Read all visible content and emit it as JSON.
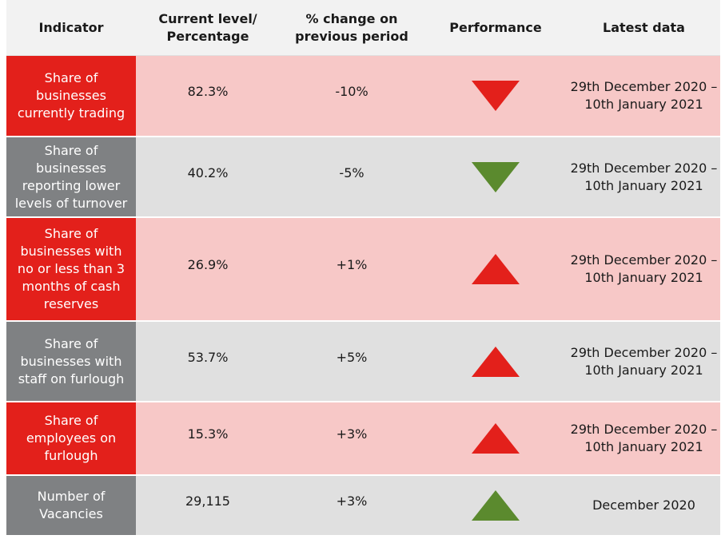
{
  "headers": {
    "indicator": "Indicator",
    "current_level": "Current level/\nPercentage",
    "pct_change": "% change on\nprevious period",
    "performance": "Performance",
    "latest_data": "Latest data"
  },
  "rows": [
    {
      "indicator": "Share of businesses currently trading",
      "value": "82.3%",
      "change": "-10%",
      "direction": "down",
      "color": "#e3201b",
      "latest": "29th December 2020 – 10th January 2021"
    },
    {
      "indicator": "Share of businesses reporting lower levels of turnover",
      "value": "40.2%",
      "change": "-5%",
      "direction": "down",
      "color": "#5b8a2e",
      "latest": "29th December 2020 – 10th January 2021"
    },
    {
      "indicator": "Share of businesses with no or less than 3 months of cash reserves",
      "value": "26.9%",
      "change": "+1%",
      "direction": "up",
      "color": "#e3201b",
      "latest": "29th December 2020 – 10th January 2021"
    },
    {
      "indicator": "Share of businesses with staff on furlough",
      "value": "53.7%",
      "change": "+5%",
      "direction": "up",
      "color": "#e3201b",
      "latest": "29th December 2020 – 10th January 2021"
    },
    {
      "indicator": "Share of employees on furlough",
      "value": "15.3%",
      "change": "+3%",
      "direction": "up",
      "color": "#e3201b",
      "latest": "29th December 2020 – 10th January 2021"
    },
    {
      "indicator": "Number of Vacancies",
      "value": "29,115",
      "change": "+3%",
      "direction": "up",
      "color": "#5b8a2e",
      "latest": "December 2020"
    }
  ]
}
